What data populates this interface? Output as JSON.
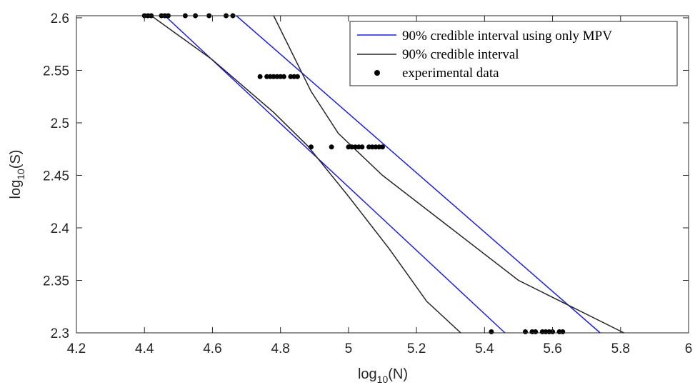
{
  "chart_data": {
    "type": "line",
    "xlabel": {
      "base": "log",
      "sub": "10",
      "arg": "(N)"
    },
    "ylabel": {
      "base": "log",
      "sub": "10",
      "arg": "(S)"
    },
    "xlim": [
      4.2,
      6
    ],
    "ylim": [
      2.3,
      2.602
    ],
    "xticks": [
      4.2,
      4.4,
      4.6,
      4.8,
      5,
      5.2,
      5.4,
      5.6,
      5.8,
      6
    ],
    "yticks": [
      2.3,
      2.35,
      2.4,
      2.45,
      2.5,
      2.55,
      2.6
    ],
    "xtick_labels": [
      "4.2",
      "4.4",
      "4.6",
      "4.8",
      "5",
      "5.2",
      "5.4",
      "5.6",
      "5.8",
      "6"
    ],
    "ytick_labels": [
      "2.3",
      "2.35",
      "2.4",
      "2.45",
      "2.5",
      "2.55",
      "2.6"
    ],
    "grid": false,
    "legend_position": "top-right",
    "colors": {
      "mpv": "#1f1fe6",
      "full": "#262626",
      "data": "#000000"
    },
    "series": [
      {
        "name": "90% credible interval using only MPV",
        "kind": "line",
        "color": "#1f1fe6",
        "segments": [
          [
            [
              4.46,
              2.602
            ],
            [
              5.46,
              2.3
            ]
          ],
          [
            [
              4.67,
              2.602
            ],
            [
              5.74,
              2.3
            ]
          ]
        ]
      },
      {
        "name": "90% credible interval",
        "kind": "line",
        "color": "#262626",
        "segments": [
          [
            [
              4.42,
              2.602
            ],
            [
              4.6,
              2.56
            ],
            [
              4.78,
              2.51
            ],
            [
              4.88,
              2.478
            ],
            [
              5.0,
              2.43
            ],
            [
              5.12,
              2.38
            ],
            [
              5.23,
              2.33
            ],
            [
              5.33,
              2.3
            ]
          ],
          [
            [
              4.78,
              2.602
            ],
            [
              4.89,
              2.53
            ],
            [
              4.97,
              2.49
            ],
            [
              5.1,
              2.45
            ],
            [
              5.3,
              2.4
            ],
            [
              5.5,
              2.35
            ],
            [
              5.81,
              2.3
            ]
          ]
        ]
      },
      {
        "name": "experimental data",
        "kind": "scatter",
        "color": "#000000",
        "points": [
          [
            4.4,
            2.602
          ],
          [
            4.41,
            2.602
          ],
          [
            4.42,
            2.602
          ],
          [
            4.45,
            2.602
          ],
          [
            4.46,
            2.602
          ],
          [
            4.47,
            2.602
          ],
          [
            4.52,
            2.602
          ],
          [
            4.55,
            2.602
          ],
          [
            4.59,
            2.602
          ],
          [
            4.64,
            2.602
          ],
          [
            4.66,
            2.602
          ],
          [
            4.74,
            2.544
          ],
          [
            4.76,
            2.544
          ],
          [
            4.77,
            2.544
          ],
          [
            4.78,
            2.544
          ],
          [
            4.79,
            2.544
          ],
          [
            4.8,
            2.544
          ],
          [
            4.81,
            2.544
          ],
          [
            4.83,
            2.544
          ],
          [
            4.84,
            2.544
          ],
          [
            4.85,
            2.544
          ],
          [
            4.89,
            2.477
          ],
          [
            4.95,
            2.477
          ],
          [
            5.0,
            2.477
          ],
          [
            5.01,
            2.477
          ],
          [
            5.02,
            2.477
          ],
          [
            5.03,
            2.477
          ],
          [
            5.04,
            2.477
          ],
          [
            5.06,
            2.477
          ],
          [
            5.07,
            2.477
          ],
          [
            5.08,
            2.477
          ],
          [
            5.09,
            2.477
          ],
          [
            5.1,
            2.477
          ],
          [
            5.42,
            2.301
          ],
          [
            5.52,
            2.301
          ],
          [
            5.54,
            2.301
          ],
          [
            5.55,
            2.301
          ],
          [
            5.57,
            2.301
          ],
          [
            5.58,
            2.301
          ],
          [
            5.59,
            2.301
          ],
          [
            5.6,
            2.301
          ],
          [
            5.62,
            2.301
          ],
          [
            5.63,
            2.301
          ]
        ]
      }
    ]
  }
}
